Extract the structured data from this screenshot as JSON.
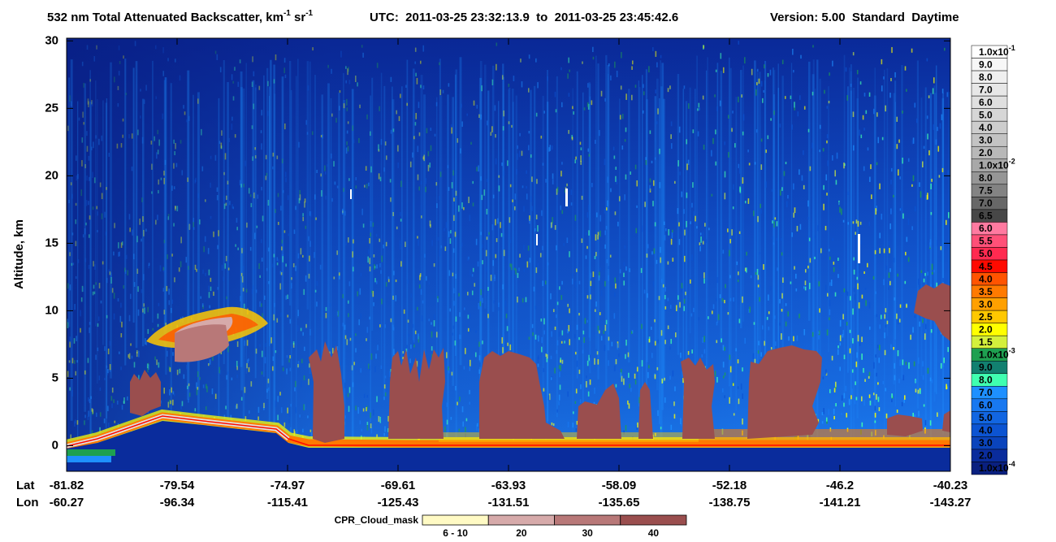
{
  "chart_data": {
    "type": "curtain",
    "title": [
      "532 nm Total Attenuated Backscatter, km",
      "-1",
      " sr",
      "-1"
    ],
    "time_range": "UTC:  2011-03-25 23:32:13.9  to  2011-03-25 23:45:42.6",
    "version": "Version: 5.00  Standard  Daytime",
    "ylabel": "Altitude, km",
    "ylim": [
      -1.9,
      30.2
    ],
    "yticks": [
      0,
      5,
      10,
      15,
      20,
      25,
      30
    ],
    "lat_label": "Lat",
    "lon_label": "Lon",
    "lat": [
      -81.82,
      -79.54,
      -74.97,
      -69.61,
      -63.93,
      -58.09,
      -52.18,
      -46.2,
      -40.23
    ],
    "lon": [
      -60.27,
      -96.34,
      -115.41,
      -125.43,
      -131.51,
      -135.65,
      -138.75,
      -141.21,
      -143.27
    ],
    "colorbar": [
      {
        "label": "1.0x10",
        "sup": "-1",
        "color": "#ffffff"
      },
      {
        "label": "9.0",
        "color": "#f7f7f7"
      },
      {
        "label": "8.0",
        "color": "#efefef"
      },
      {
        "label": "7.0",
        "color": "#e7e7e7"
      },
      {
        "label": "6.0",
        "color": "#dfdfdf"
      },
      {
        "label": "5.0",
        "color": "#d6d6d6"
      },
      {
        "label": "4.0",
        "color": "#cdcdcd"
      },
      {
        "label": "3.0",
        "color": "#c3c3c3"
      },
      {
        "label": "2.0",
        "color": "#b8b8b8"
      },
      {
        "label": "1.0x10",
        "sup": "-2",
        "color": "#a8a8a8"
      },
      {
        "label": "8.0",
        "color": "#969696"
      },
      {
        "label": "7.5",
        "color": "#838383"
      },
      {
        "label": "7.0",
        "color": "#676767"
      },
      {
        "label": "6.5",
        "color": "#474747"
      },
      {
        "label": "6.0",
        "color": "#ff7aa0"
      },
      {
        "label": "5.5",
        "color": "#ff5078"
      },
      {
        "label": "5.0",
        "color": "#ff2a50"
      },
      {
        "label": "4.5",
        "color": "#ff0a00"
      },
      {
        "label": "4.0",
        "color": "#ff5400"
      },
      {
        "label": "3.5",
        "color": "#ff7a00"
      },
      {
        "label": "3.0",
        "color": "#ffa000"
      },
      {
        "label": "2.5",
        "color": "#ffc800"
      },
      {
        "label": "2.0",
        "color": "#ffff00"
      },
      {
        "label": "1.5",
        "color": "#d4f03c"
      },
      {
        "label": "1.0x10",
        "sup": "-3",
        "color": "#1ea050"
      },
      {
        "label": "9.0",
        "color": "#128070"
      },
      {
        "label": "8.0",
        "color": "#40ffb0"
      },
      {
        "label": "7.0",
        "color": "#1e90ff"
      },
      {
        "label": "6.0",
        "color": "#1878f0"
      },
      {
        "label": "5.0",
        "color": "#1266e2"
      },
      {
        "label": "4.0",
        "color": "#0c54d2"
      },
      {
        "label": "3.0",
        "color": "#0a44bc"
      },
      {
        "label": "2.0",
        "color": "#0a2c9c"
      },
      {
        "label": "1.0x10",
        "sup": "-4",
        "color": "#0a2080"
      }
    ],
    "cloud_mask_title": "CPR_Cloud_mask",
    "cloud_mask": [
      {
        "label": "6 - 10",
        "color": "#fffac4"
      },
      {
        "label": "20",
        "color": "#d6aaaa"
      },
      {
        "label": "30",
        "color": "#b87878"
      },
      {
        "label": "40",
        "color": "#9a4e4e"
      }
    ]
  }
}
